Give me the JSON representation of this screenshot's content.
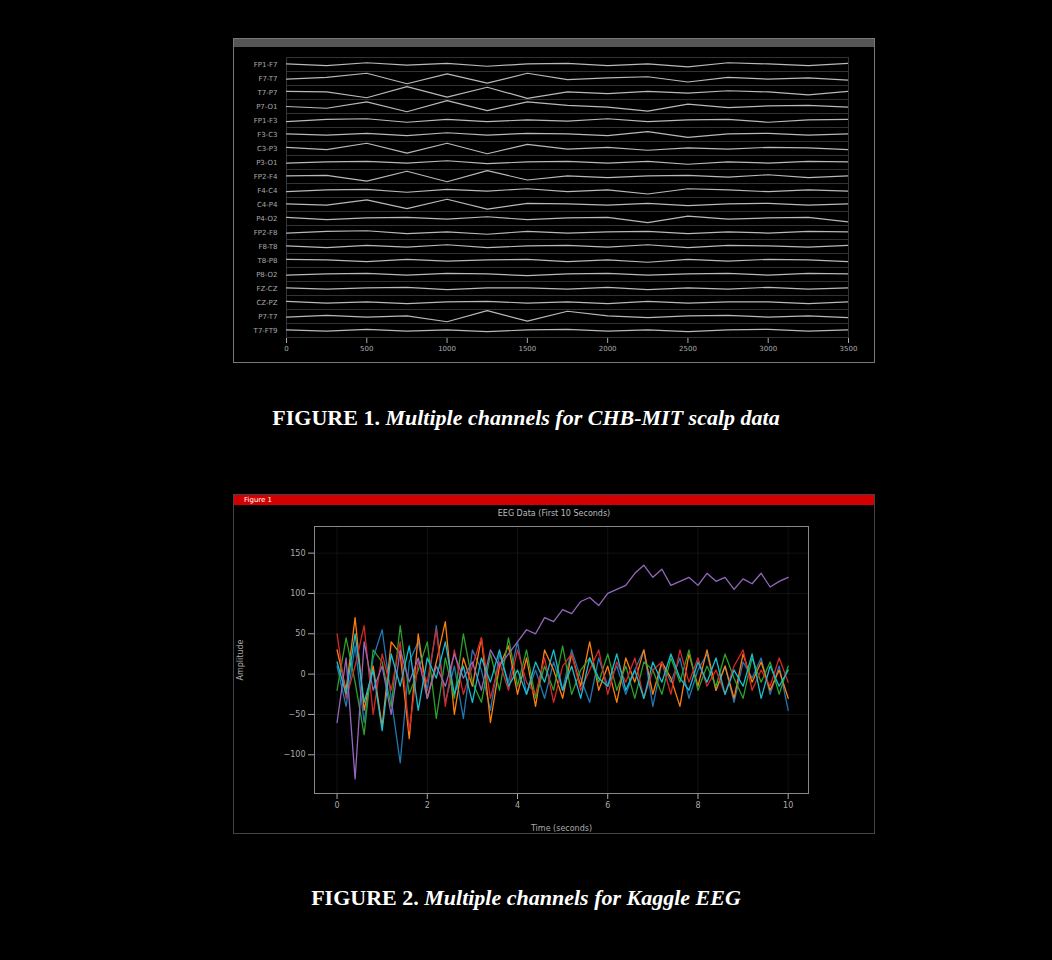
{
  "chart_data": [
    {
      "type": "line",
      "caption": "FIGURE 1. Multiple channels for CHB-MIT scalp data",
      "x": [
        0,
        250,
        500,
        750,
        1000,
        1250,
        1500,
        1750,
        2000,
        2250,
        2500,
        2750,
        3000,
        3250,
        3500
      ],
      "xlim": [
        0,
        3500
      ],
      "xticks": [
        0,
        500,
        1000,
        1500,
        2000,
        2500,
        3000,
        3500
      ],
      "ylim": [
        -1.2,
        1.2
      ],
      "tick_labels": "x",
      "series": [
        {
          "name": "FP1-F7",
          "color": "#b8b8b8",
          "values": [
            0.1,
            -0.2,
            0.3,
            -0.1,
            0.2,
            -0.3,
            0.1,
            0.2,
            -0.2,
            0.1,
            -0.4,
            0.3,
            0.1,
            -0.2,
            0.2
          ]
        },
        {
          "name": "F7-T7",
          "color": "#b8b8b8",
          "values": [
            -0.1,
            0.2,
            0.9,
            -0.9,
            0.8,
            -0.8,
            0.9,
            -0.2,
            0.1,
            0.3,
            -0.6,
            0.2,
            -0.1,
            0.1,
            -0.3
          ]
        },
        {
          "name": "T7-P7",
          "color": "#b8b8b8",
          "values": [
            0.2,
            0.1,
            -0.9,
            1.0,
            -0.8,
            0.9,
            -1.0,
            0.1,
            -0.2,
            0.2,
            -0.1,
            0.3,
            0.1,
            -0.4,
            0.2
          ]
        },
        {
          "name": "P7-O1",
          "color": "#b8b8b8",
          "values": [
            0.0,
            -0.3,
            0.8,
            -0.9,
            1.0,
            -0.7,
            0.8,
            0.2,
            -0.1,
            -0.8,
            0.4,
            -0.2,
            0.1,
            0.2,
            -0.1
          ]
        },
        {
          "name": "FP1-F3",
          "color": "#b8b8b8",
          "values": [
            -0.2,
            0.2,
            0.3,
            -0.3,
            0.2,
            -0.2,
            0.1,
            -0.1,
            0.3,
            -0.2,
            0.1,
            0.2,
            -0.3,
            0.1,
            0.2
          ]
        },
        {
          "name": "F3-C3",
          "color": "#b8b8b8",
          "values": [
            0.1,
            -0.1,
            0.2,
            -0.2,
            0.3,
            -0.1,
            0.2,
            0.1,
            -0.2,
            0.5,
            -0.5,
            0.1,
            0.2,
            -0.1,
            0.1
          ]
        },
        {
          "name": "C3-P3",
          "color": "#b8b8b8",
          "values": [
            0.2,
            -0.2,
            0.9,
            -0.8,
            0.9,
            -0.9,
            0.7,
            -0.1,
            0.2,
            -0.3,
            0.1,
            -0.1,
            0.2,
            0.1,
            -0.2
          ]
        },
        {
          "name": "P3-O1",
          "color": "#b8b8b8",
          "values": [
            -0.1,
            0.1,
            0.2,
            -0.1,
            0.3,
            -0.2,
            0.1,
            0.2,
            -0.1,
            0.2,
            -0.3,
            0.1,
            -0.1,
            0.2,
            0.1
          ]
        },
        {
          "name": "FP2-F4",
          "color": "#b8b8b8",
          "values": [
            0.1,
            0.2,
            -0.8,
            0.9,
            -0.9,
            1.0,
            -0.6,
            0.1,
            -0.2,
            0.1,
            0.2,
            -0.1,
            0.3,
            -0.2,
            0.1
          ]
        },
        {
          "name": "F4-C4",
          "color": "#b8b8b8",
          "values": [
            -0.2,
            0.1,
            0.2,
            -0.3,
            0.2,
            -0.1,
            0.3,
            -0.2,
            0.1,
            -0.6,
            0.3,
            0.1,
            -0.2,
            0.1,
            -0.1
          ]
        },
        {
          "name": "C4-P4",
          "color": "#b8b8b8",
          "values": [
            0.1,
            -0.1,
            0.8,
            -0.7,
            0.9,
            -0.8,
            0.2,
            0.1,
            -0.1,
            0.2,
            -0.2,
            0.1,
            0.2,
            -0.1,
            0.1
          ]
        },
        {
          "name": "P4-O2",
          "color": "#b8b8b8",
          "values": [
            0.2,
            -0.2,
            0.1,
            0.2,
            -0.1,
            0.3,
            -0.2,
            0.1,
            0.2,
            -0.7,
            0.4,
            -0.1,
            0.1,
            0.2,
            -0.6
          ]
        },
        {
          "name": "FP2-F8",
          "color": "#b8b8b8",
          "values": [
            -0.1,
            0.2,
            0.3,
            -0.2,
            0.1,
            -0.3,
            0.2,
            -0.1,
            0.1,
            0.2,
            -0.2,
            0.1,
            -0.1,
            0.2,
            0.1
          ]
        },
        {
          "name": "F8-T8",
          "color": "#b8b8b8",
          "values": [
            0.1,
            -0.2,
            0.2,
            -0.1,
            0.3,
            -0.2,
            0.1,
            0.2,
            -0.1,
            0.3,
            -0.2,
            0.2,
            0.1,
            -0.1,
            0.2
          ]
        },
        {
          "name": "T8-P8",
          "color": "#b8b8b8",
          "values": [
            0.2,
            0.1,
            -0.2,
            0.2,
            -0.1,
            0.1,
            0.2,
            -0.2,
            0.1,
            -0.3,
            0.2,
            -0.1,
            0.2,
            0.1,
            -0.2
          ]
        },
        {
          "name": "P8-O2",
          "color": "#b8b8b8",
          "values": [
            -0.1,
            0.1,
            0.2,
            -0.1,
            0.2,
            0.1,
            -0.2,
            0.1,
            0.2,
            -0.1,
            0.1,
            0.2,
            -0.1,
            0.2,
            0.1
          ]
        },
        {
          "name": "FZ-CZ",
          "color": "#b8b8b8",
          "values": [
            0.1,
            -0.1,
            0.1,
            0.2,
            -0.2,
            0.1,
            0.1,
            -0.1,
            0.2,
            -0.2,
            0.1,
            -0.1,
            0.2,
            -0.1,
            0.1
          ]
        },
        {
          "name": "CZ-PZ",
          "color": "#b8b8b8",
          "values": [
            0.2,
            -0.1,
            0.1,
            -0.2,
            0.1,
            0.2,
            -0.1,
            0.1,
            -0.2,
            0.2,
            -0.1,
            0.1,
            0.1,
            -0.2,
            0.1
          ]
        },
        {
          "name": "P7-T7",
          "color": "#b8b8b8",
          "values": [
            -0.1,
            0.2,
            -0.1,
            0.1,
            -0.9,
            1.0,
            -0.8,
            0.9,
            0.1,
            -0.2,
            0.1,
            0.2,
            -0.1,
            0.1,
            -0.2
          ]
        },
        {
          "name": "T7-FT9",
          "color": "#b8b8b8",
          "values": [
            0.1,
            -0.1,
            0.2,
            -0.1,
            0.1,
            -0.2,
            0.1,
            0.2,
            -0.1,
            0.1,
            -0.2,
            0.1,
            0.2,
            -0.1,
            0.1
          ]
        }
      ]
    },
    {
      "type": "line",
      "window_title": "Figure 1",
      "title": "EEG Data (First 10 Seconds)",
      "x_label": "Time (seconds)",
      "y_label": "Amplitude",
      "caption": "FIGURE 2. Multiple channels for Kaggle EEG",
      "grid": true,
      "x": [
        0,
        0.2,
        0.4,
        0.6,
        0.8,
        1,
        1.2,
        1.4,
        1.6,
        1.8,
        2,
        2.2,
        2.4,
        2.6,
        2.8,
        3,
        3.2,
        3.4,
        3.6,
        3.8,
        4,
        4.2,
        4.4,
        4.6,
        4.8,
        5,
        5.2,
        5.4,
        5.6,
        5.8,
        6,
        6.2,
        6.4,
        6.6,
        6.8,
        7,
        7.2,
        7.4,
        7.6,
        7.8,
        8,
        8.2,
        8.4,
        8.6,
        8.8,
        9,
        9.2,
        9.4,
        9.6,
        9.8,
        10
      ],
      "xlim": [
        -0.5,
        10.45
      ],
      "xticks": [
        0,
        2,
        4,
        6,
        8,
        10
      ],
      "ylim": [
        -148,
        183
      ],
      "yticks": [
        -100,
        -50,
        0,
        50,
        100,
        150
      ],
      "series": [
        {
          "color": "#1f77b4",
          "values": [
            10,
            -40,
            35,
            -60,
            20,
            55,
            -30,
            -110,
            15,
            40,
            -20,
            60,
            -35,
            10,
            -55,
            30,
            5,
            -45,
            25,
            -10,
            40,
            -25,
            5,
            -30,
            15,
            -20,
            30,
            -5,
            -35,
            20,
            -15,
            10,
            -25,
            5,
            30,
            -40,
            15,
            -10,
            20,
            -30,
            5,
            25,
            -20,
            10,
            -35,
            15,
            -5,
            20,
            -25,
            10,
            -45
          ]
        },
        {
          "color": "#ff7f0e",
          "values": [
            30,
            -20,
            70,
            -45,
            10,
            -65,
            40,
            25,
            -80,
            50,
            -30,
            15,
            65,
            -50,
            20,
            -15,
            45,
            -60,
            10,
            35,
            -25,
            20,
            -40,
            30,
            5,
            -30,
            25,
            -15,
            40,
            -20,
            10,
            -35,
            20,
            -10,
            30,
            -25,
            15,
            -5,
            -40,
            25,
            -15,
            30,
            -20,
            10,
            -30,
            25,
            -10,
            15,
            -20,
            5,
            -30
          ]
        },
        {
          "color": "#2ca02c",
          "values": [
            -20,
            45,
            -10,
            -75,
            30,
            15,
            -40,
            60,
            -25,
            5,
            40,
            -55,
            20,
            -30,
            50,
            -10,
            -35,
            25,
            -20,
            45,
            -15,
            30,
            -30,
            10,
            -20,
            35,
            -25,
            5,
            20,
            -10,
            25,
            -20,
            10,
            -30,
            15,
            5,
            -25,
            20,
            -10,
            30,
            -20,
            10,
            -15,
            25,
            -5,
            -30,
            20,
            -10,
            15,
            -25,
            10
          ]
        },
        {
          "color": "#d62728",
          "values": [
            50,
            -30,
            10,
            60,
            -50,
            25,
            -20,
            40,
            -70,
            15,
            -10,
            55,
            -40,
            30,
            -25,
            10,
            45,
            -30,
            15,
            -20,
            30,
            -10,
            -25,
            20,
            -35,
            10,
            25,
            -20,
            5,
            30,
            -25,
            15,
            -10,
            20,
            -30,
            5,
            15,
            -25,
            30,
            -10,
            20,
            -15,
            5,
            -25,
            10,
            30,
            -20,
            5,
            -15,
            20,
            -10
          ]
        },
        {
          "color": "#9467bd",
          "values": [
            -60,
            20,
            -130,
            40,
            -20,
            10,
            -50,
            30,
            -10,
            20,
            -30,
            10,
            -15,
            25,
            -5,
            15,
            -20,
            30,
            10,
            25,
            40,
            55,
            50,
            70,
            65,
            80,
            75,
            90,
            95,
            85,
            100,
            105,
            110,
            125,
            135,
            120,
            130,
            110,
            115,
            120,
            110,
            125,
            115,
            120,
            105,
            118,
            112,
            125,
            108,
            115,
            120
          ]
        },
        {
          "color": "#17becf",
          "values": [
            15,
            -25,
            50,
            -35,
            5,
            -70,
            25,
            -15,
            35,
            -45,
            20,
            -5,
            40,
            -25,
            10,
            -35,
            20,
            -10,
            30,
            -15,
            5,
            -25,
            15,
            -10,
            30,
            -20,
            10,
            -30,
            20,
            -5,
            -15,
            25,
            -20,
            5,
            -30,
            15,
            -10,
            25,
            -5,
            -20,
            15,
            -10,
            20,
            -25,
            5,
            -15,
            25,
            -30,
            10,
            -15,
            5
          ]
        }
      ]
    }
  ]
}
